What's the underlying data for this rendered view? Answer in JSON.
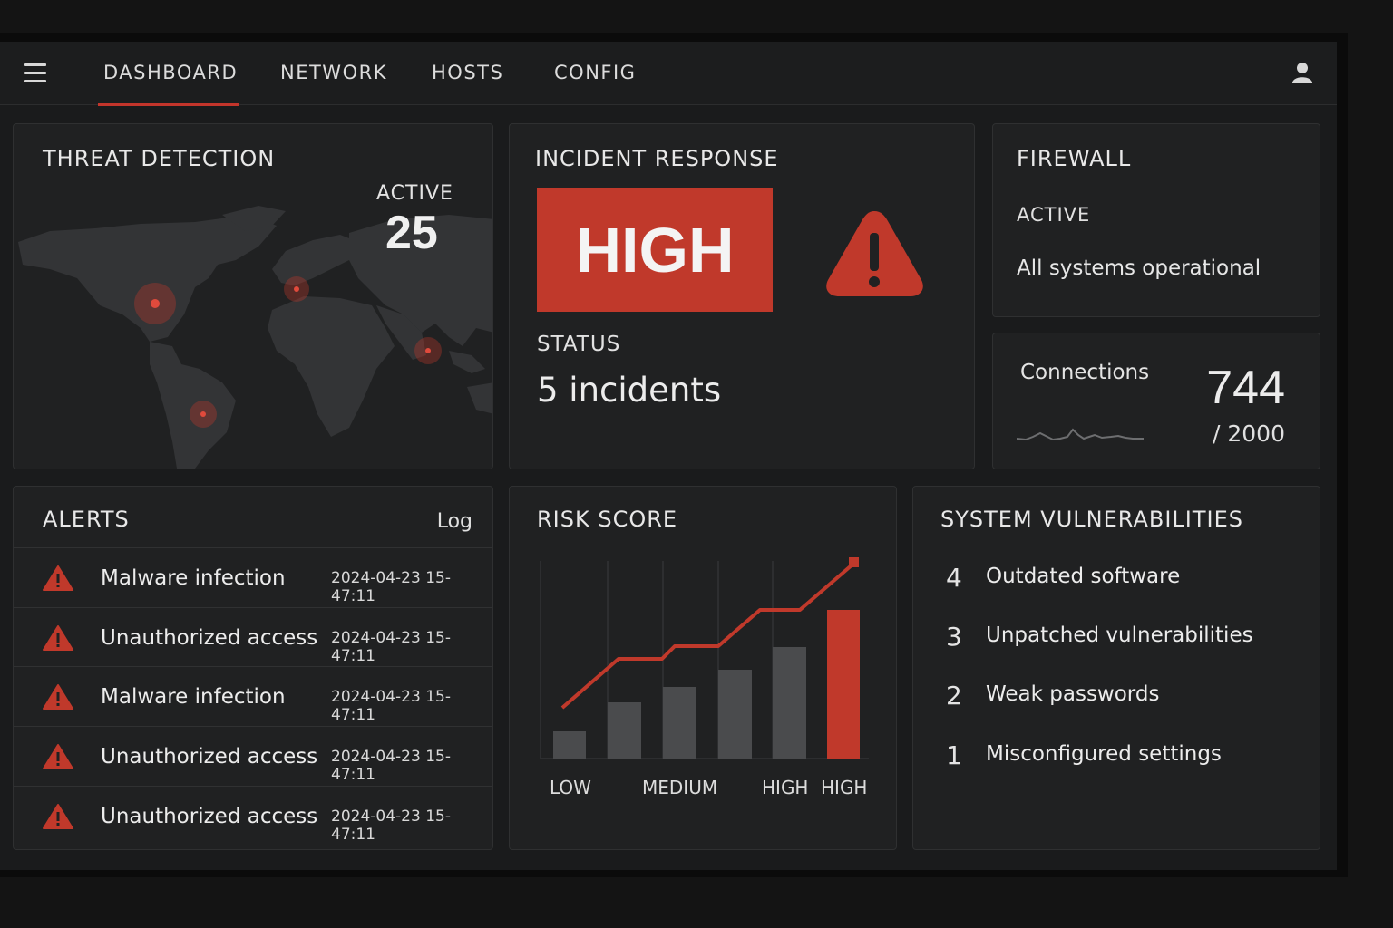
{
  "nav": {
    "tabs": [
      {
        "label": "DASHBOARD",
        "active": true
      },
      {
        "label": "NETWORK"
      },
      {
        "label": "HOSTS"
      },
      {
        "label": "CONFIG"
      }
    ],
    "menu_icon": "hamburger-icon",
    "user_icon": "user-icon"
  },
  "threat": {
    "title": "THREAT DETECTION",
    "active_label": "ACTIVE",
    "active_count": "25"
  },
  "incident": {
    "title": "INCIDENT RESPONSE",
    "level": "HIGH",
    "status_label": "STATUS",
    "status_value": "5 incidents",
    "icon": "warning-icon"
  },
  "firewall": {
    "title": "FIREWALL",
    "state": "ACTIVE",
    "message": "All systems operational"
  },
  "connections": {
    "label": "Connections",
    "value": "744",
    "max": "/ 2000"
  },
  "alerts": {
    "title": "ALERTS",
    "log_label": "Log",
    "items": [
      {
        "message": "Malware infection",
        "time": "2024-04-23 15-47:11"
      },
      {
        "message": "Unauthorized access",
        "time": "2024-04-23 15-47:11"
      },
      {
        "message": "Malware infection",
        "time": "2024-04-23 15-47:11"
      },
      {
        "message": "Unauthorized access",
        "time": "2024-04-23 15-47:11"
      },
      {
        "message": "Unauthorized access",
        "time": "2024-04-23 15-47:11"
      }
    ]
  },
  "risk": {
    "title": "RISK SCORE",
    "x_labels": [
      "LOW",
      "MEDIUM",
      "HIGH",
      "HIGH"
    ]
  },
  "vulnerabilities": {
    "title": "SYSTEM VULNERABILITIES",
    "items": [
      {
        "count": "4",
        "label": "Outdated software"
      },
      {
        "count": "3",
        "label": "Unpatched vulnerabilities"
      },
      {
        "count": "2",
        "label": "Weak passwords"
      },
      {
        "count": "1",
        "label": "Misconfigured settings"
      }
    ]
  },
  "colors": {
    "accent": "#c0392b",
    "panel": "#202122",
    "background": "#1a1b1c"
  }
}
